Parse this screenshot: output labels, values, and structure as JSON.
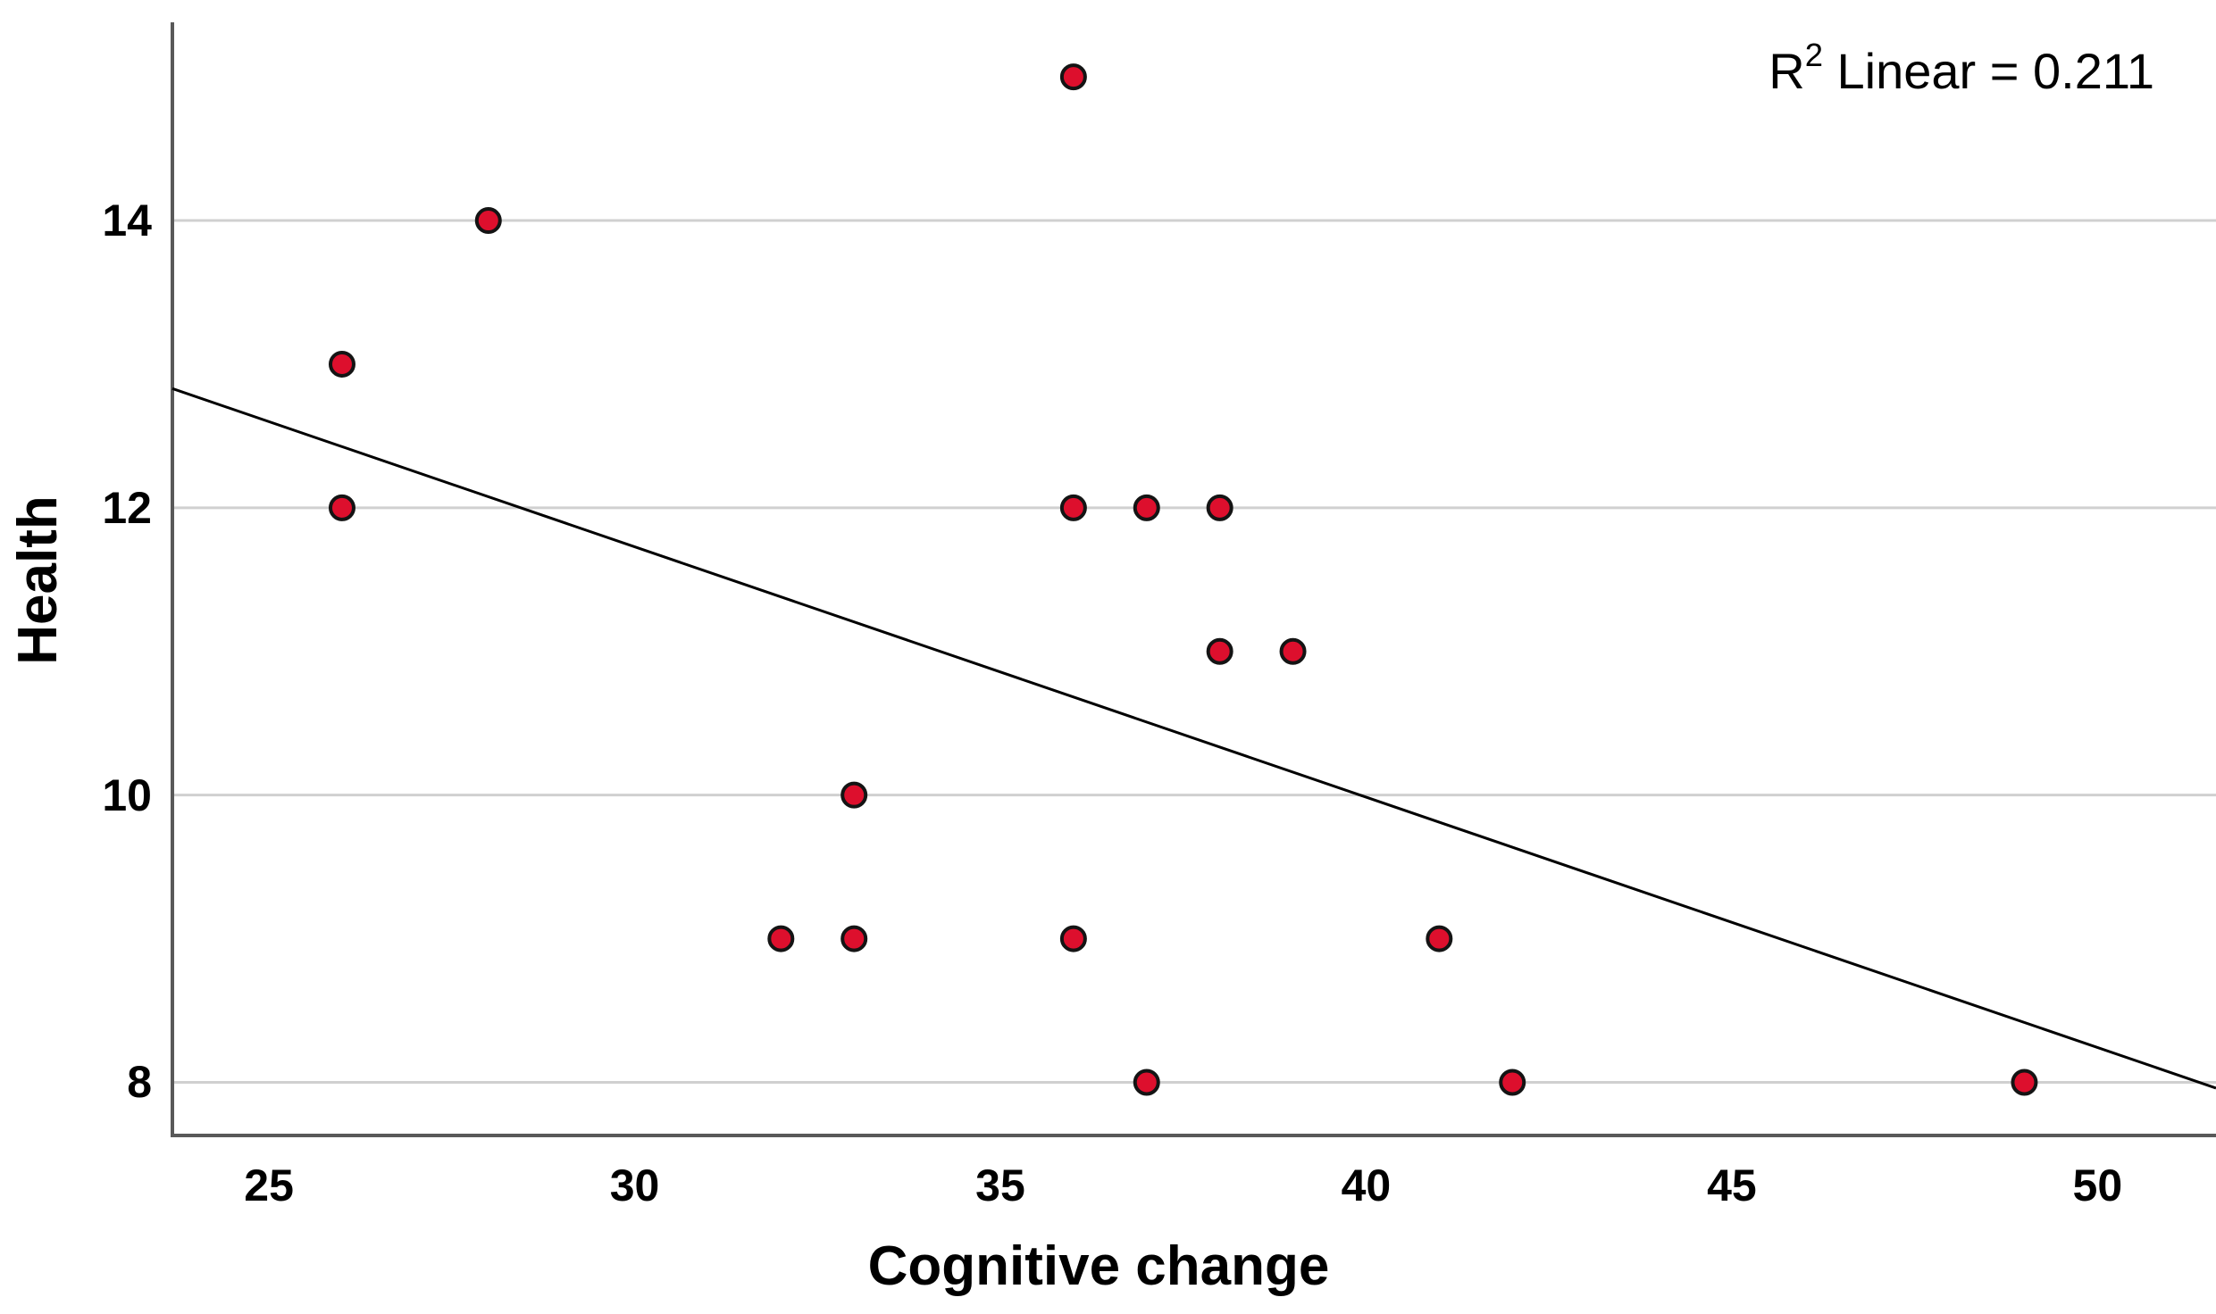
{
  "chart_data": {
    "type": "scatter",
    "title": "",
    "xlabel": "Cognitive change",
    "ylabel": "Health",
    "annotation": {
      "prefix": "R",
      "sup": "2",
      "rest": " Linear = 0.211"
    },
    "r2_value": 0.211,
    "x_ticks": [
      25,
      30,
      35,
      40,
      45,
      50
    ],
    "y_ticks": [
      8,
      10,
      12,
      14
    ],
    "xlim": [
      23.68,
      51.62
    ],
    "ylim": [
      7.63,
      15.38
    ],
    "grid": "horizontal-only",
    "legend": "none",
    "points": [
      [
        36,
        15
      ],
      [
        28,
        14
      ],
      [
        26,
        13
      ],
      [
        26,
        12
      ],
      [
        36,
        12
      ],
      [
        37,
        12
      ],
      [
        38,
        12
      ],
      [
        38,
        11
      ],
      [
        39,
        11
      ],
      [
        33,
        10
      ],
      [
        32,
        9
      ],
      [
        33,
        9
      ],
      [
        36,
        9
      ],
      [
        41,
        9
      ],
      [
        37,
        8
      ],
      [
        42,
        8
      ],
      [
        49,
        8
      ]
    ],
    "fit_line": {
      "x1": 23.68,
      "y1": 12.83,
      "x2": 51.62,
      "y2": 7.96
    },
    "colors": {
      "point_fill": "#dd0f2d",
      "point_stroke": "#141414",
      "grid_line": "#d0d0d0",
      "axis_line": "#595959",
      "fit_line": "#000000",
      "text": "#000000",
      "background": "#ffffff"
    }
  }
}
